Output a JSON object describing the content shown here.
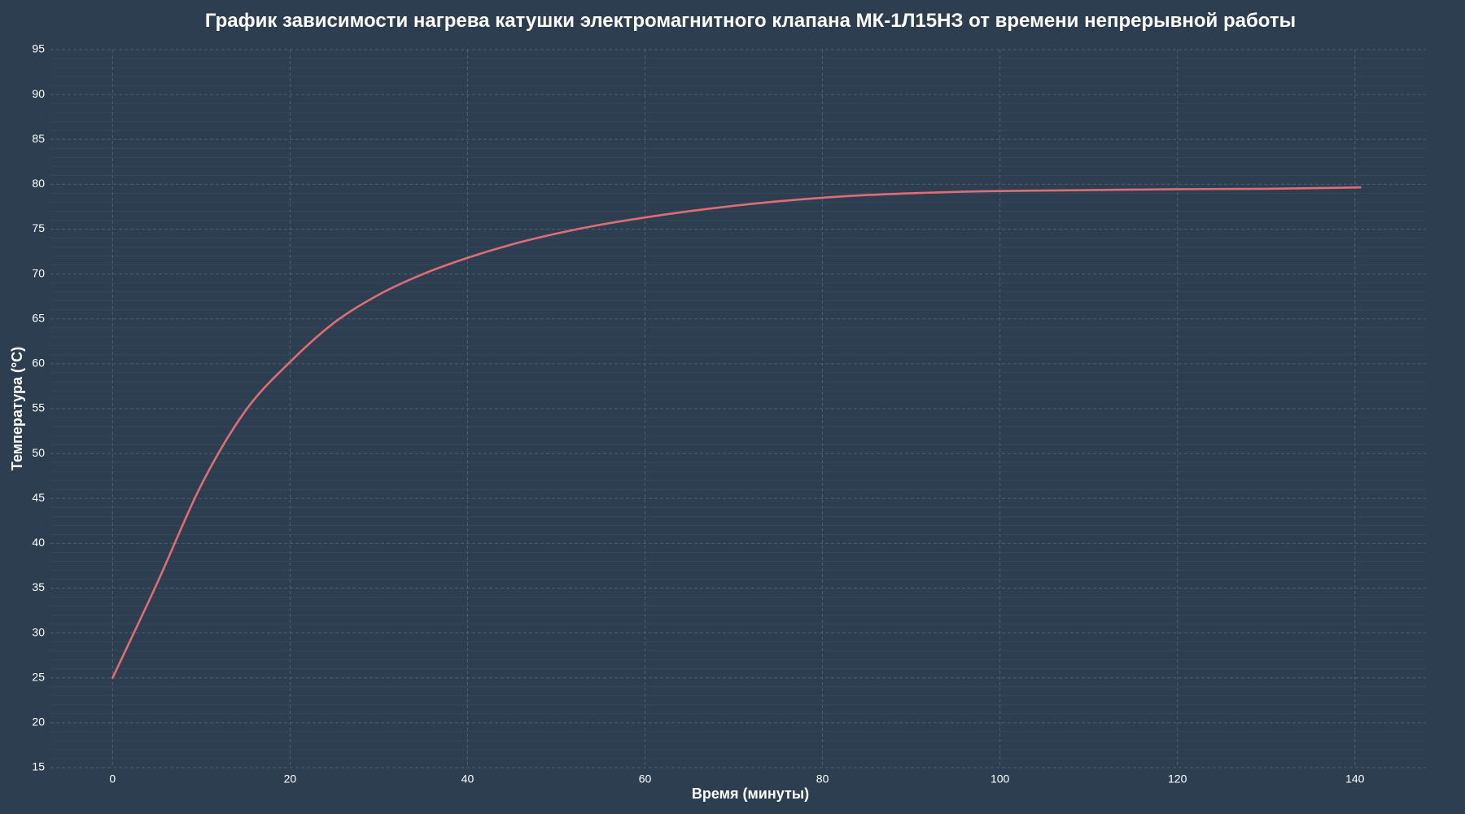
{
  "chart_data": {
    "type": "line",
    "title": "График зависимости нагрева катушки электромагнитного клапана МК-1Л15НЗ от времени непрерывной работы",
    "xlabel": "Время (минуты)",
    "ylabel": "Температура (°C)",
    "xlim": [
      -7,
      148
    ],
    "ylim": [
      15,
      95
    ],
    "xticks": [
      0,
      20,
      40,
      60,
      80,
      100,
      120,
      140
    ],
    "yticks": [
      15,
      20,
      25,
      30,
      35,
      40,
      45,
      50,
      55,
      60,
      65,
      70,
      75,
      80,
      85,
      90,
      95
    ],
    "grid": true,
    "series": [
      {
        "color": "#e06c75",
        "x": [
          0,
          5,
          10,
          15,
          20,
          25,
          30,
          35,
          40,
          45,
          50,
          55,
          60,
          65,
          70,
          75,
          80,
          85,
          90,
          95,
          100,
          110,
          120,
          130,
          140.6
        ],
        "y": [
          25.0,
          35.5,
          46.5,
          54.8,
          60.2,
          64.6,
          67.7,
          70.0,
          71.8,
          73.3,
          74.5,
          75.5,
          76.3,
          77.0,
          77.6,
          78.1,
          78.5,
          78.8,
          79.0,
          79.15,
          79.25,
          79.35,
          79.45,
          79.5,
          79.65
        ]
      }
    ]
  }
}
